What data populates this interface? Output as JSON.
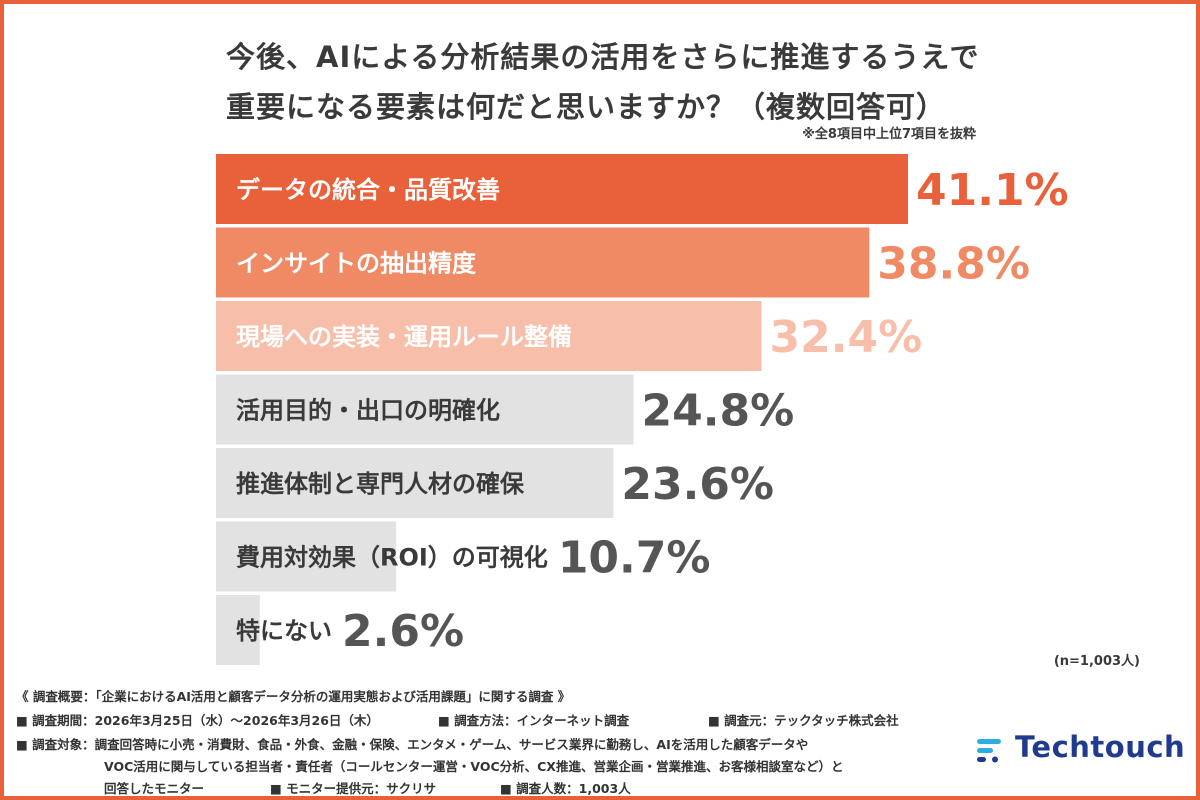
{
  "title_line1": "今後、AIによる分析結果の活用をさらに推進するうえで",
  "title_line2": "重要になる要素は何だと思いますか？（複数回答可）",
  "note": "※全8項目中上位7項目を抜粋",
  "n_label": "(n=1,003人)",
  "chart_data": {
    "type": "bar",
    "orientation": "horizontal",
    "categories": [
      "データの統合・品質改善",
      "インサイトの抽出精度",
      "現場への実装・運用ルール整備",
      "活用目的・出口の明確化",
      "推進体制と専門人材の確保",
      "費用対効果（ROI）の可視化",
      "特にない"
    ],
    "values": [
      41.1,
      38.8,
      32.4,
      24.8,
      23.6,
      10.7,
      2.6
    ],
    "value_labels": [
      "41.1%",
      "38.8%",
      "32.4%",
      "24.8%",
      "23.6%",
      "10.7%",
      "2.6%"
    ],
    "bar_colors": [
      "#e8613a",
      "#ef8a65",
      "#f7bfaa",
      "#e3e2e2",
      "#e3e2e2",
      "#e3e2e2",
      "#e3e2e2"
    ],
    "label_colors": [
      "#ffffff",
      "#ffffff",
      "#ffffff",
      "#3a3a3a",
      "#3a3a3a",
      "#3a3a3a",
      "#3a3a3a"
    ],
    "value_colors": [
      "#e8613a",
      "#ef8a65",
      "#f7bfaa",
      "#555555",
      "#555555",
      "#555555",
      "#555555"
    ],
    "xlim": [
      0,
      41.1
    ]
  },
  "footer": {
    "line1": "《 調査概要：「企業におけるAI活用と顧客データ分析の運用実態および活用課題」に関する調査 》",
    "line2a": "■ 調査期間：2026年3月25日（水）〜2026年3月26日（木）",
    "line2b": "■ 調査方法：インターネット調査",
    "line2c": "■ 調査元：テックタッチ株式会社",
    "line3": "■ 調査対象：調査回答時に小売・消費財、食品・外食、金融・保険、エンタメ・ゲーム、サービス業界に勤務し、AIを活用した顧客データや",
    "line4": "VOC活用に関与している担当者・責任者（コールセンター運営・VOC分析、CX推進、営業企画・営業推進、お客様相談室など）と",
    "line5a": "回答したモニター",
    "line5b": "■ モニター提供元：サクリサ",
    "line5c": "■ 調査人数：1,003人"
  },
  "logo": {
    "text": "Techtouch",
    "color": "#1f3a8f",
    "accent": "#2eaee0"
  }
}
